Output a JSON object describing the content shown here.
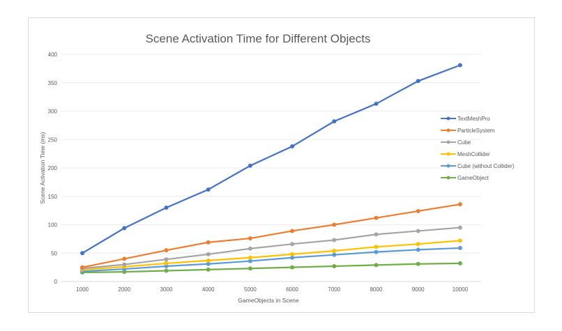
{
  "chart_data": {
    "type": "line",
    "title": "Scene Activation Time for Different Objects",
    "xlabel": "GameObjects in Scene",
    "ylabel": "Scene Activation Time (ms)",
    "x": [
      1000,
      2000,
      3000,
      4000,
      5000,
      6000,
      7000,
      8000,
      9000,
      10000
    ],
    "ylim": [
      0,
      400
    ],
    "yticks": [
      0,
      50,
      100,
      150,
      200,
      250,
      300,
      350,
      400
    ],
    "grid": true,
    "legend_position": "right",
    "series": [
      {
        "name": "TextMeshPro",
        "color": "#4472c4",
        "values": [
          50,
          94,
          130,
          162,
          204,
          238,
          282,
          313,
          353,
          381
        ]
      },
      {
        "name": "ParticleSystem",
        "color": "#ed7d31",
        "values": [
          25,
          40,
          55,
          69,
          76,
          89,
          100,
          112,
          124,
          136
        ]
      },
      {
        "name": "Cube",
        "color": "#a5a5a5",
        "values": [
          23,
          30,
          39,
          48,
          58,
          66,
          73,
          83,
          89,
          95
        ]
      },
      {
        "name": "MeshCollider",
        "color": "#ffc000",
        "values": [
          21,
          26,
          32,
          37,
          42,
          48,
          54,
          61,
          66,
          72
        ]
      },
      {
        "name": "Cube (without Collider)",
        "color": "#5b9bd5",
        "values": [
          18,
          22,
          27,
          31,
          36,
          42,
          47,
          52,
          56,
          59
        ]
      },
      {
        "name": "GameObject",
        "color": "#70ad47",
        "values": [
          16,
          17,
          19,
          21,
          23,
          25,
          27,
          29,
          31,
          32
        ]
      }
    ]
  }
}
